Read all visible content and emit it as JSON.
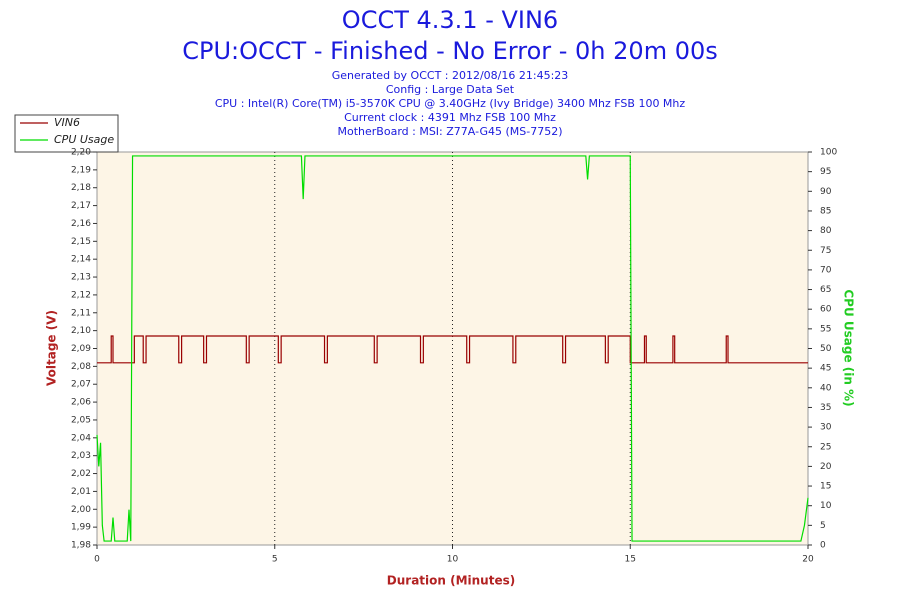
{
  "chart_data": {
    "type": "line",
    "title": "OCCT 4.3.1 - VIN6",
    "subtitle": "CPU:OCCT - Finished - No Error - 0h 20m 00s",
    "info": [
      "Generated by OCCT : 2012/08/16 21:45:23",
      "Config : Large Data Set",
      "CPU : Intel(R) Core(TM) i5-3570K CPU @ 3.40GHz (Ivy Bridge) 3400 Mhz FSB 100 Mhz",
      "Current clock : 4391 Mhz FSB 100 Mhz",
      "MotherBoard : MSI: Z77A-G45 (MS-7752)"
    ],
    "xlabel": "Duration (Minutes)",
    "ylabel": "Voltage (V)",
    "y2label": "CPU Usage (in %)",
    "xlim": [
      0,
      20
    ],
    "xticks": [
      0,
      5,
      10,
      15,
      20
    ],
    "ylim": [
      1.98,
      2.2
    ],
    "yticks": [
      {
        "value": 1.98,
        "label": "1,98"
      },
      {
        "value": 1.99,
        "label": "1,99"
      },
      {
        "value": 2.0,
        "label": "2,00"
      },
      {
        "value": 2.01,
        "label": "2,01"
      },
      {
        "value": 2.02,
        "label": "2,02"
      },
      {
        "value": 2.03,
        "label": "2,03"
      },
      {
        "value": 2.04,
        "label": "2,04"
      },
      {
        "value": 2.05,
        "label": "2,05"
      },
      {
        "value": 2.06,
        "label": "2,06"
      },
      {
        "value": 2.07,
        "label": "2,07"
      },
      {
        "value": 2.08,
        "label": "2,08"
      },
      {
        "value": 2.09,
        "label": "2,09"
      },
      {
        "value": 2.1,
        "label": "2,10"
      },
      {
        "value": 2.11,
        "label": "2,11"
      },
      {
        "value": 2.12,
        "label": "2,12"
      },
      {
        "value": 2.13,
        "label": "2,13"
      },
      {
        "value": 2.14,
        "label": "2,14"
      },
      {
        "value": 2.15,
        "label": "2,15"
      },
      {
        "value": 2.16,
        "label": "2,16"
      },
      {
        "value": 2.17,
        "label": "2,17"
      },
      {
        "value": 2.18,
        "label": "2,18"
      },
      {
        "value": 2.19,
        "label": "2,19"
      },
      {
        "value": 2.2,
        "label": "2,20"
      }
    ],
    "y2lim": [
      0,
      100
    ],
    "y2ticks": [
      0,
      5,
      10,
      15,
      20,
      25,
      30,
      35,
      40,
      45,
      50,
      55,
      60,
      65,
      70,
      75,
      80,
      85,
      90,
      95,
      100
    ],
    "grid": true,
    "legend": "top-left",
    "series": [
      {
        "name": "VIN6",
        "color": "#990000",
        "x": [
          0,
          0.4,
          0.4,
          0.45,
          0.45,
          1.05,
          1.05,
          1.3,
          1.3,
          1.38,
          1.38,
          2.3,
          2.3,
          2.38,
          2.38,
          3.0,
          3.0,
          3.08,
          3.08,
          4.2,
          4.2,
          4.28,
          4.28,
          5.1,
          5.1,
          5.18,
          5.18,
          6.4,
          6.4,
          6.48,
          6.48,
          7.8,
          7.8,
          7.88,
          7.88,
          9.1,
          9.1,
          9.18,
          9.18,
          10.4,
          10.4,
          10.48,
          10.48,
          11.7,
          11.7,
          11.78,
          11.78,
          13.1,
          13.1,
          13.18,
          13.18,
          14.3,
          14.3,
          14.38,
          14.38,
          15.0,
          15.0,
          15.4,
          15.4,
          15.45,
          15.45,
          16.2,
          16.2,
          16.25,
          16.25,
          17.7,
          17.7,
          17.75,
          17.75,
          20
        ],
        "values": [
          2.082,
          2.082,
          2.097,
          2.097,
          2.082,
          2.082,
          2.097,
          2.097,
          2.082,
          2.082,
          2.097,
          2.097,
          2.082,
          2.082,
          2.097,
          2.097,
          2.082,
          2.082,
          2.097,
          2.097,
          2.082,
          2.082,
          2.097,
          2.097,
          2.082,
          2.082,
          2.097,
          2.097,
          2.082,
          2.082,
          2.097,
          2.097,
          2.082,
          2.082,
          2.097,
          2.097,
          2.082,
          2.082,
          2.097,
          2.097,
          2.082,
          2.082,
          2.097,
          2.097,
          2.082,
          2.082,
          2.097,
          2.097,
          2.082,
          2.082,
          2.097,
          2.097,
          2.082,
          2.082,
          2.097,
          2.097,
          2.082,
          2.082,
          2.097,
          2.097,
          2.082,
          2.082,
          2.097,
          2.097,
          2.082,
          2.082,
          2.097,
          2.097,
          2.082,
          2.082
        ]
      },
      {
        "name": "CPU Usage",
        "color": "#00dd00",
        "axis": "y2",
        "x": [
          0,
          0.05,
          0.1,
          0.15,
          0.2,
          0.4,
          0.45,
          0.5,
          0.85,
          0.9,
          0.95,
          1.0,
          1.05,
          3,
          5.75,
          5.8,
          5.85,
          8,
          10,
          12,
          13.75,
          13.8,
          13.85,
          14.95,
          15.0,
          15.05,
          17,
          19.8,
          19.9,
          20
        ],
        "values": [
          28,
          20,
          26,
          5,
          1,
          1,
          7,
          1,
          1,
          9,
          1,
          99,
          99,
          99,
          99,
          88,
          99,
          99,
          99,
          99,
          99,
          93,
          99,
          99,
          99,
          1,
          1,
          1,
          5,
          12
        ]
      }
    ]
  }
}
